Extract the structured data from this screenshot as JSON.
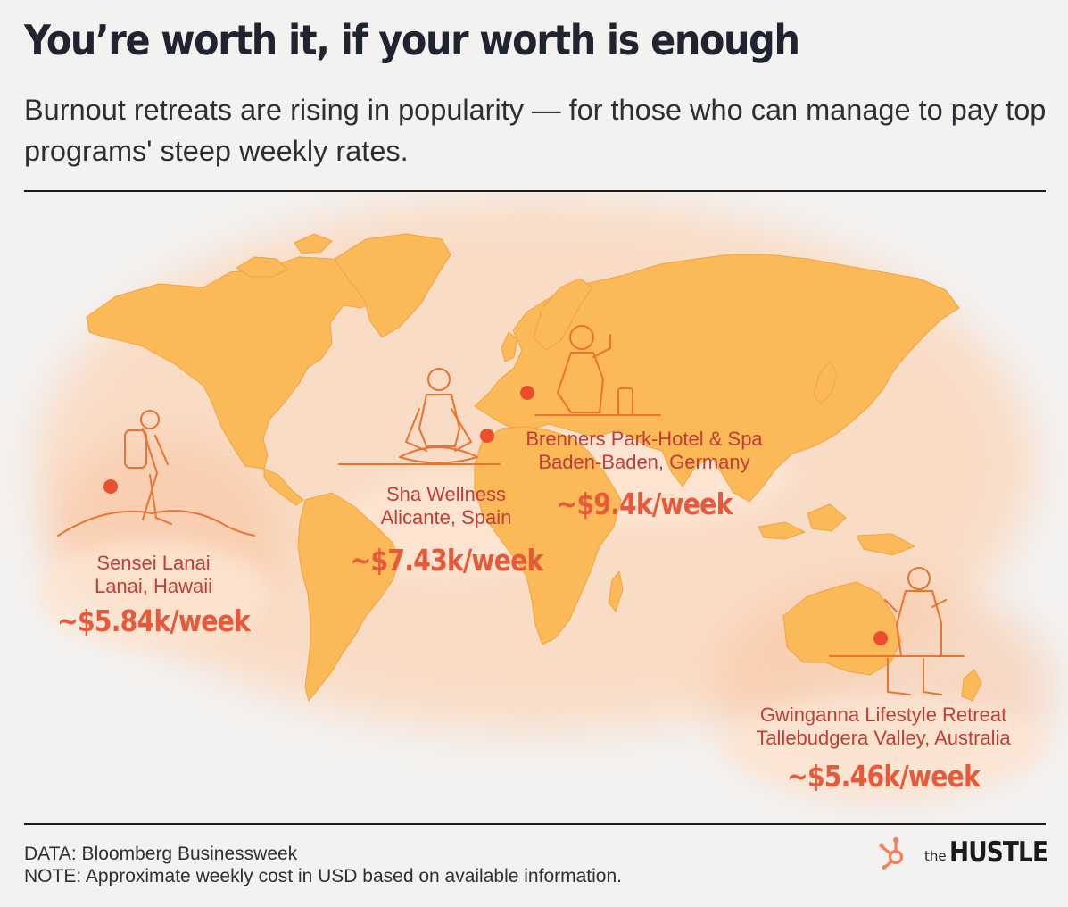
{
  "header": {
    "title": "You’re worth it, if your worth is enough",
    "subtitle": "Burnout retreats are rising in popularity — for those who can manage to pay top programs' steep weekly rates."
  },
  "map": {
    "land_color": "#fbb957",
    "ocean_glow_color": "#fbd4b5",
    "marker_color": "#ec4e2c",
    "illustration_color": "#e9732f",
    "retreats": [
      {
        "name": "Sensei Lanai",
        "location": "Lanai, Hawaii",
        "price": "~$5.84k/week",
        "figure": "hiker-illustration"
      },
      {
        "name": "Sha Wellness",
        "location": "Alicante, Spain",
        "price": "~$7.43k/week",
        "figure": "meditating-woman-illustration"
      },
      {
        "name": "Brenners Park-Hotel & Spa",
        "location": "Baden-Baden, Germany",
        "price": "~$9.4k/week",
        "figure": "woman-drinking-illustration"
      },
      {
        "name": "Gwinganna Lifestyle Retreat",
        "location": "Tallebudgera Valley, Australia",
        "price": "~$5.46k/week",
        "figure": "martial-arts-woman-illustration"
      }
    ]
  },
  "footer": {
    "source": "DATA: Bloomberg Businessweek",
    "note": "NOTE: Approximate weekly cost in USD based on available information."
  },
  "brand": {
    "prefix": "the",
    "name": "HUSTLE",
    "logo_icon": "hubspot-sprocket-icon",
    "logo_color": "#ff7a59"
  }
}
